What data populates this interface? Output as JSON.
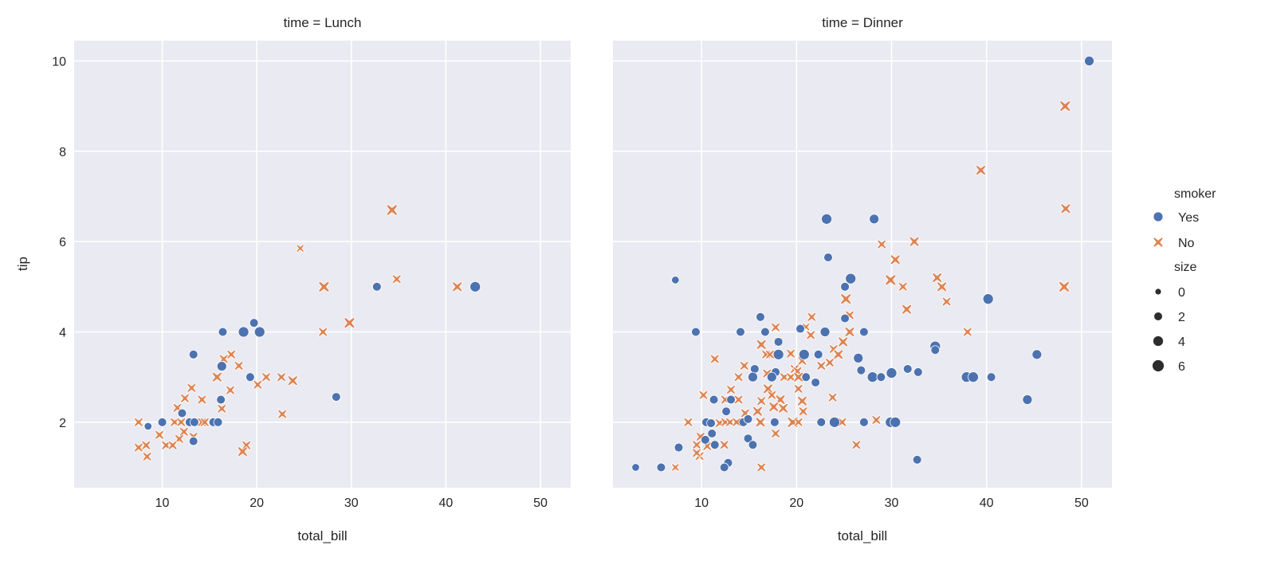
{
  "colors": {
    "Yes": "#4c72b0",
    "No": "#dd8452",
    "panel_bg": "#eaeaf2",
    "grid": "#ffffff",
    "size_legend": "#2d2d2d"
  },
  "chart_data": {
    "type": "scatter",
    "xlabel": "total_bill",
    "ylabel": "tip",
    "xlim": [
      0.68,
      53.2
    ],
    "ylim": [
      0.55,
      10.45
    ],
    "xticks": [
      10,
      20,
      30,
      40,
      50
    ],
    "yticks": [
      2,
      4,
      6,
      8,
      10
    ],
    "grid": true,
    "legend": {
      "placement": "right",
      "hue_title": "smoker",
      "hue_entries": [
        {
          "label": "Yes",
          "marker": "circle"
        },
        {
          "label": "No",
          "marker": "x"
        }
      ],
      "size_title": "size",
      "size_entries": [
        {
          "label": "0",
          "value": 0
        },
        {
          "label": "2",
          "value": 2
        },
        {
          "label": "4",
          "value": 4
        },
        {
          "label": "6",
          "value": 6
        }
      ]
    },
    "point_format": [
      "total_bill",
      "tip",
      "size"
    ],
    "panels": [
      {
        "title": "time = Lunch",
        "series": {
          "Yes": [
            [
              16.4,
              4.0,
              2
            ],
            [
              18.6,
              4.0,
              4
            ],
            [
              19.7,
              4.2,
              2
            ],
            [
              20.3,
              4.0,
              4
            ],
            [
              13.3,
              3.5,
              2
            ],
            [
              16.3,
              3.24,
              3
            ],
            [
              19.3,
              3.0,
              2
            ],
            [
              28.4,
              2.56,
              2
            ],
            [
              16.2,
              2.5,
              2
            ],
            [
              12.1,
              2.2,
              2
            ],
            [
              8.5,
              1.91,
              1
            ],
            [
              10.0,
              2.0,
              2
            ],
            [
              12.9,
              2.0,
              2
            ],
            [
              13.4,
              2.0,
              2
            ],
            [
              15.4,
              2.0,
              2
            ],
            [
              15.9,
              2.0,
              2
            ],
            [
              13.3,
              1.58,
              2
            ],
            [
              32.7,
              5.0,
              2
            ],
            [
              43.1,
              5.0,
              4
            ]
          ],
          "No": [
            [
              27.0,
              4.0,
              2
            ],
            [
              16.5,
              3.4,
              2
            ],
            [
              17.3,
              3.5,
              2
            ],
            [
              18.1,
              3.25,
              2
            ],
            [
              15.8,
              3.0,
              3
            ],
            [
              21.0,
              3.0,
              2
            ],
            [
              22.6,
              3.0,
              2
            ],
            [
              23.8,
              2.92,
              3
            ],
            [
              20.1,
              2.83,
              2
            ],
            [
              13.1,
              2.76,
              2
            ],
            [
              17.2,
              2.71,
              2
            ],
            [
              12.4,
              2.53,
              2
            ],
            [
              14.2,
              2.5,
              2
            ],
            [
              11.6,
              2.32,
              2
            ],
            [
              16.3,
              2.3,
              2
            ],
            [
              22.7,
              2.18,
              2
            ],
            [
              7.5,
              2.0,
              2
            ],
            [
              11.3,
              2.0,
              2
            ],
            [
              12.0,
              2.0,
              2
            ],
            [
              14.2,
              2.0,
              2
            ],
            [
              14.5,
              2.0,
              2
            ],
            [
              9.7,
              1.72,
              2
            ],
            [
              12.3,
              1.79,
              2
            ],
            [
              11.8,
              1.63,
              2
            ],
            [
              13.3,
              1.68,
              2
            ],
            [
              7.5,
              1.44,
              2
            ],
            [
              8.3,
              1.49,
              2
            ],
            [
              10.4,
              1.49,
              2
            ],
            [
              11.1,
              1.49,
              2
            ],
            [
              8.4,
              1.24,
              2
            ],
            [
              18.9,
              1.49,
              2
            ],
            [
              18.5,
              1.35,
              3
            ],
            [
              24.6,
              5.85,
              1
            ],
            [
              27.1,
              5.0,
              4
            ],
            [
              29.8,
              4.2,
              4
            ],
            [
              34.3,
              6.7,
              4
            ],
            [
              34.8,
              5.17,
              2
            ],
            [
              41.2,
              5.0,
              3
            ]
          ]
        }
      },
      {
        "title": "time = Dinner",
        "series": {
          "Yes": [
            [
              16.2,
              4.33,
              2
            ],
            [
              9.4,
              4.0,
              2
            ],
            [
              14.1,
              4.0,
              2
            ],
            [
              16.7,
              4.0,
              2
            ],
            [
              20.4,
              4.07,
              2
            ],
            [
              23.0,
              4.0,
              3
            ],
            [
              25.1,
              4.3,
              2
            ],
            [
              27.1,
              4.0,
              2
            ],
            [
              18.1,
              3.78,
              2
            ],
            [
              18.1,
              3.5,
              4
            ],
            [
              20.8,
              3.5,
              4
            ],
            [
              22.3,
              3.5,
              2
            ],
            [
              26.5,
              3.42,
              3
            ],
            [
              26.8,
              3.15,
              2
            ],
            [
              15.6,
              3.18,
              2
            ],
            [
              17.8,
              3.11,
              2
            ],
            [
              15.4,
              3.0,
              3
            ],
            [
              17.4,
              3.0,
              3
            ],
            [
              21.0,
              3.0,
              2
            ],
            [
              22.0,
              2.88,
              2
            ],
            [
              11.3,
              2.5,
              2
            ],
            [
              13.1,
              2.5,
              2
            ],
            [
              12.6,
              2.24,
              2
            ],
            [
              10.5,
              2.0,
              2
            ],
            [
              11.0,
              1.98,
              2
            ],
            [
              14.4,
              2.0,
              2
            ],
            [
              14.9,
              2.07,
              2
            ],
            [
              17.7,
              2.0,
              2
            ],
            [
              22.6,
              2.0,
              2
            ],
            [
              24.0,
              2.0,
              4
            ],
            [
              27.1,
              2.0,
              2
            ],
            [
              11.1,
              1.75,
              2
            ],
            [
              10.4,
              1.61,
              2
            ],
            [
              11.4,
              1.5,
              2
            ],
            [
              7.6,
              1.44,
              2
            ],
            [
              14.9,
              1.64,
              2
            ],
            [
              15.4,
              1.5,
              2
            ],
            [
              5.75,
              1.0,
              2
            ],
            [
              12.8,
              1.1,
              2
            ],
            [
              12.4,
              1.0,
              2
            ],
            [
              3.07,
              1.0,
              1
            ],
            [
              7.25,
              5.15,
              1
            ],
            [
              23.17,
              6.5,
              4
            ],
            [
              28.17,
              6.5,
              3
            ],
            [
              23.33,
              5.65,
              2
            ],
            [
              25.7,
              5.18,
              4
            ],
            [
              25.1,
              5.0,
              2
            ],
            [
              40.17,
              4.73,
              4
            ],
            [
              34.6,
              3.68,
              4
            ],
            [
              34.6,
              3.6,
              2
            ],
            [
              45.3,
              3.5,
              3
            ],
            [
              28.0,
              3.0,
              4
            ],
            [
              28.9,
              3.0,
              2
            ],
            [
              30.0,
              3.09,
              4
            ],
            [
              31.7,
              3.18,
              2
            ],
            [
              32.8,
              3.11,
              2
            ],
            [
              37.9,
              3.0,
              4
            ],
            [
              38.6,
              3.0,
              4
            ],
            [
              40.5,
              3.0,
              2
            ],
            [
              44.3,
              2.5,
              3
            ],
            [
              29.9,
              2.0,
              4
            ],
            [
              30.4,
              2.0,
              4
            ],
            [
              32.7,
              1.17,
              2
            ],
            [
              50.81,
              10.0,
              3
            ]
          ],
          "No": [
            [
              25.2,
              4.73,
              4
            ],
            [
              25.6,
              4.37,
              2
            ],
            [
              21.6,
              4.33,
              2
            ],
            [
              17.8,
              4.1,
              2
            ],
            [
              21.0,
              4.11,
              1
            ],
            [
              21.5,
              3.93,
              2
            ],
            [
              25.6,
              4.0,
              3
            ],
            [
              18.1,
              3.78,
              2
            ],
            [
              16.3,
              3.72,
              3
            ],
            [
              24.9,
              3.78,
              3
            ],
            [
              23.9,
              3.62,
              2
            ],
            [
              24.4,
              3.5,
              3
            ],
            [
              16.8,
              3.5,
              2
            ],
            [
              17.2,
              3.5,
              2
            ],
            [
              19.4,
              3.52,
              2
            ],
            [
              20.6,
              3.36,
              2
            ],
            [
              23.5,
              3.32,
              2
            ],
            [
              22.6,
              3.25,
              2
            ],
            [
              11.4,
              3.4,
              2
            ],
            [
              14.5,
              3.25,
              2
            ],
            [
              19.8,
              3.18,
              2
            ],
            [
              20.1,
              3.13,
              2
            ],
            [
              13.9,
              3.0,
              2
            ],
            [
              18.7,
              3.0,
              2
            ],
            [
              19.4,
              3.0,
              2
            ],
            [
              20.2,
              3.0,
              3
            ],
            [
              16.9,
              3.08,
              2
            ],
            [
              17.0,
              2.74,
              3
            ],
            [
              20.2,
              2.74,
              2
            ],
            [
              13.1,
              2.72,
              2
            ],
            [
              10.2,
              2.6,
              2
            ],
            [
              17.4,
              2.6,
              2
            ],
            [
              16.3,
              2.47,
              2
            ],
            [
              18.3,
              2.5,
              3
            ],
            [
              20.6,
              2.47,
              3
            ],
            [
              12.5,
              2.5,
              2
            ],
            [
              13.9,
              2.5,
              2
            ],
            [
              23.8,
              2.55,
              2
            ],
            [
              17.6,
              2.34,
              3
            ],
            [
              18.6,
              2.31,
              3
            ],
            [
              15.9,
              2.24,
              3
            ],
            [
              20.7,
              2.24,
              2
            ],
            [
              14.6,
              2.2,
              2
            ],
            [
              8.6,
              2.0,
              2
            ],
            [
              11.9,
              1.98,
              2
            ],
            [
              12.5,
              2.0,
              2
            ],
            [
              13.0,
              2.0,
              2
            ],
            [
              13.7,
              2.0,
              2
            ],
            [
              16.2,
              2.0,
              3
            ],
            [
              19.6,
              2.0,
              4
            ],
            [
              20.2,
              2.0,
              2
            ],
            [
              24.8,
              2.0,
              2
            ],
            [
              17.8,
              1.75,
              2
            ],
            [
              9.9,
              1.68,
              2
            ],
            [
              9.5,
              1.5,
              2
            ],
            [
              10.6,
              1.47,
              2
            ],
            [
              12.4,
              1.5,
              2
            ],
            [
              9.8,
              1.25,
              2
            ],
            [
              9.5,
              1.32,
              2
            ],
            [
              7.25,
              1.0,
              1
            ],
            [
              16.3,
              1.0,
              2
            ],
            [
              26.3,
              1.5,
              2
            ],
            [
              39.4,
              7.58,
              3
            ],
            [
              48.27,
              9.0,
              4
            ],
            [
              48.33,
              6.73,
              3
            ],
            [
              32.4,
              6.0,
              3
            ],
            [
              28.97,
              5.94,
              2
            ],
            [
              30.4,
              5.6,
              3
            ],
            [
              29.9,
              5.15,
              4
            ],
            [
              31.2,
              5.0,
              2
            ],
            [
              34.8,
              5.2,
              3
            ],
            [
              35.3,
              5.0,
              3
            ],
            [
              48.17,
              5.0,
              4
            ],
            [
              35.8,
              4.67,
              2
            ],
            [
              31.6,
              4.5,
              3
            ],
            [
              38.0,
              4.0,
              2
            ],
            [
              28.4,
              2.05,
              2
            ]
          ]
        }
      }
    ]
  }
}
